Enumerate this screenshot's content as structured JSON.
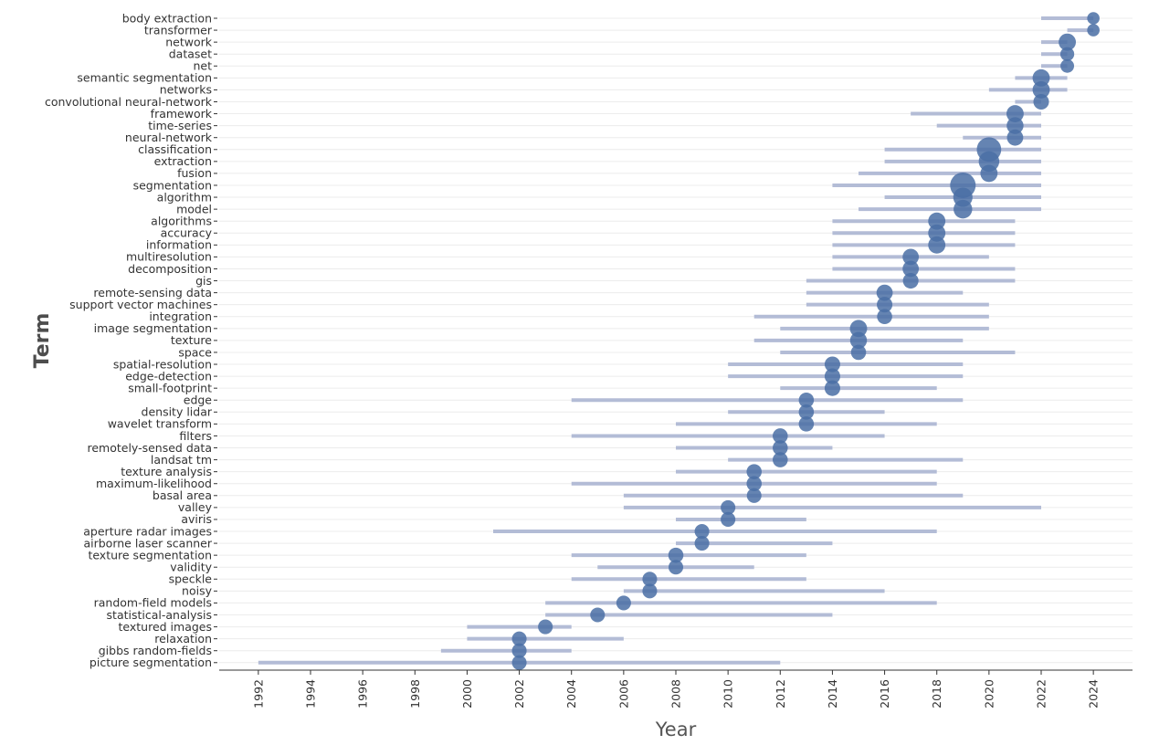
{
  "chart_data": {
    "type": "scatter",
    "title": "",
    "xlabel": "Year",
    "ylabel": "Term",
    "xlim": [
      1990.5,
      2025.5
    ],
    "xticks": [
      1992,
      1994,
      1996,
      1998,
      2000,
      2002,
      2004,
      2006,
      2008,
      2010,
      2012,
      2014,
      2016,
      2018,
      2020,
      2022,
      2024
    ],
    "grid": "horizontal",
    "legend": "none",
    "colors": {
      "point": "#4a6fa5",
      "bar": "#b3bcd6",
      "grid": "#ececec",
      "axis": "#333333"
    },
    "terms": [
      {
        "term": "body extraction",
        "start": 2022,
        "end": 2024,
        "median": 2024,
        "size": 1
      },
      {
        "term": "transformer",
        "start": 2023,
        "end": 2024,
        "median": 2024,
        "size": 1
      },
      {
        "term": "network",
        "start": 2022,
        "end": 2023,
        "median": 2023,
        "size": 3
      },
      {
        "term": "dataset",
        "start": 2022,
        "end": 2023,
        "median": 2023,
        "size": 1.5
      },
      {
        "term": "net",
        "start": 2022,
        "end": 2023,
        "median": 2023,
        "size": 1.4
      },
      {
        "term": "semantic segmentation",
        "start": 2021,
        "end": 2023,
        "median": 2022,
        "size": 3
      },
      {
        "term": "networks",
        "start": 2020,
        "end": 2023,
        "median": 2022,
        "size": 3
      },
      {
        "term": "convolutional neural-network",
        "start": 2021,
        "end": 2022,
        "median": 2022,
        "size": 2.2
      },
      {
        "term": "framework",
        "start": 2017,
        "end": 2022,
        "median": 2021,
        "size": 3
      },
      {
        "term": "time-series",
        "start": 2018,
        "end": 2022,
        "median": 2021,
        "size": 2.8
      },
      {
        "term": "neural-network",
        "start": 2019,
        "end": 2022,
        "median": 2021,
        "size": 2.5
      },
      {
        "term": "classification",
        "start": 2016,
        "end": 2022,
        "median": 2020,
        "size": 8
      },
      {
        "term": "extraction",
        "start": 2016,
        "end": 2022,
        "median": 2020,
        "size": 5
      },
      {
        "term": "fusion",
        "start": 2015,
        "end": 2022,
        "median": 2020,
        "size": 3
      },
      {
        "term": "segmentation",
        "start": 2014,
        "end": 2022,
        "median": 2019,
        "size": 9
      },
      {
        "term": "algorithm",
        "start": 2016,
        "end": 2022,
        "median": 2019,
        "size": 4.2
      },
      {
        "term": "model",
        "start": 2015,
        "end": 2022,
        "median": 2019,
        "size": 3.8
      },
      {
        "term": "algorithms",
        "start": 2014,
        "end": 2021,
        "median": 2018,
        "size": 3
      },
      {
        "term": "accuracy",
        "start": 2014,
        "end": 2021,
        "median": 2018,
        "size": 3
      },
      {
        "term": "information",
        "start": 2014,
        "end": 2021,
        "median": 2018,
        "size": 3
      },
      {
        "term": "multiresolution",
        "start": 2014,
        "end": 2020,
        "median": 2017,
        "size": 2.5
      },
      {
        "term": "decomposition",
        "start": 2014,
        "end": 2021,
        "median": 2017,
        "size": 2.5
      },
      {
        "term": "gis",
        "start": 2013,
        "end": 2021,
        "median": 2017,
        "size": 2.2
      },
      {
        "term": "remote-sensing data",
        "start": 2013,
        "end": 2019,
        "median": 2016,
        "size": 2.5
      },
      {
        "term": "support vector machines",
        "start": 2013,
        "end": 2020,
        "median": 2016,
        "size": 2.2
      },
      {
        "term": "integration",
        "start": 2011,
        "end": 2020,
        "median": 2016,
        "size": 2
      },
      {
        "term": "image segmentation",
        "start": 2012,
        "end": 2020,
        "median": 2015,
        "size": 3
      },
      {
        "term": "texture",
        "start": 2011,
        "end": 2019,
        "median": 2015,
        "size": 2.8
      },
      {
        "term": "space",
        "start": 2012,
        "end": 2021,
        "median": 2015,
        "size": 2
      },
      {
        "term": "spatial-resolution",
        "start": 2010,
        "end": 2019,
        "median": 2014,
        "size": 2.2
      },
      {
        "term": "edge-detection",
        "start": 2010,
        "end": 2019,
        "median": 2014,
        "size": 2.2
      },
      {
        "term": "small-footprint",
        "start": 2012,
        "end": 2018,
        "median": 2014,
        "size": 2.2
      },
      {
        "term": "edge",
        "start": 2004,
        "end": 2019,
        "median": 2013,
        "size": 2
      },
      {
        "term": "density lidar",
        "start": 2010,
        "end": 2016,
        "median": 2013,
        "size": 2
      },
      {
        "term": "wavelet transform",
        "start": 2008,
        "end": 2018,
        "median": 2013,
        "size": 2
      },
      {
        "term": "filters",
        "start": 2004,
        "end": 2016,
        "median": 2012,
        "size": 2
      },
      {
        "term": "remotely-sensed data",
        "start": 2008,
        "end": 2014,
        "median": 2012,
        "size": 2
      },
      {
        "term": "landsat tm",
        "start": 2010,
        "end": 2019,
        "median": 2012,
        "size": 2
      },
      {
        "term": "texture analysis",
        "start": 2008,
        "end": 2018,
        "median": 2011,
        "size": 2
      },
      {
        "term": "maximum-likelihood",
        "start": 2004,
        "end": 2018,
        "median": 2011,
        "size": 2
      },
      {
        "term": "basal area",
        "start": 2006,
        "end": 2019,
        "median": 2011,
        "size": 1.8
      },
      {
        "term": "valley",
        "start": 2006,
        "end": 2022,
        "median": 2010,
        "size": 1.8
      },
      {
        "term": "aviris",
        "start": 2008,
        "end": 2013,
        "median": 2010,
        "size": 1.8
      },
      {
        "term": "aperture radar images",
        "start": 2001,
        "end": 2018,
        "median": 2009,
        "size": 1.8
      },
      {
        "term": "airborne laser scanner",
        "start": 2008,
        "end": 2014,
        "median": 2009,
        "size": 1.8
      },
      {
        "term": "texture segmentation",
        "start": 2004,
        "end": 2013,
        "median": 2008,
        "size": 2
      },
      {
        "term": "validity",
        "start": 2005,
        "end": 2011,
        "median": 2008,
        "size": 1.8
      },
      {
        "term": "speckle",
        "start": 2004,
        "end": 2013,
        "median": 2007,
        "size": 1.8
      },
      {
        "term": "noisy",
        "start": 2006,
        "end": 2016,
        "median": 2007,
        "size": 1.8
      },
      {
        "term": "random-field models",
        "start": 2003,
        "end": 2018,
        "median": 2006,
        "size": 1.8
      },
      {
        "term": "statistical-analysis",
        "start": 2003,
        "end": 2014,
        "median": 2005,
        "size": 1.8
      },
      {
        "term": "textured images",
        "start": 2000,
        "end": 2004,
        "median": 2003,
        "size": 1.8
      },
      {
        "term": "relaxation",
        "start": 2000,
        "end": 2006,
        "median": 2002,
        "size": 1.8
      },
      {
        "term": "gibbs random-fields",
        "start": 1999,
        "end": 2004,
        "median": 2002,
        "size": 1.8
      },
      {
        "term": "picture segmentation",
        "start": 1992,
        "end": 2012,
        "median": 2002,
        "size": 1.8
      }
    ]
  }
}
